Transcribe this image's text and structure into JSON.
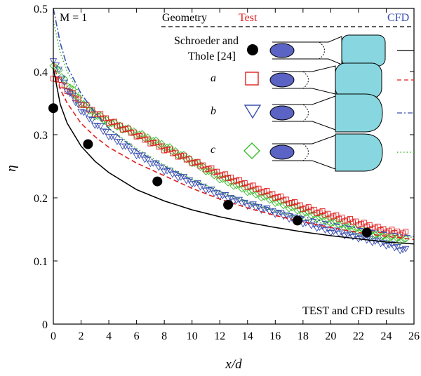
{
  "chart_data": {
    "type": "scatter",
    "xlabel": "x/d",
    "ylabel": "η",
    "xlim": [
      0,
      26
    ],
    "ylim": [
      0,
      0.5
    ],
    "xticks": [
      "0",
      "2",
      "4",
      "6",
      "8",
      "10",
      "12",
      "14",
      "16",
      "18",
      "20",
      "22",
      "24",
      "26"
    ],
    "yticks": [
      "0",
      "0.1",
      "0.2",
      "0.3",
      "0.4",
      "0.5"
    ],
    "annotation_top_left": "M = 1",
    "annotation_bottom_right": "TEST and CFD results",
    "legend": {
      "col_geometry": "Geometry",
      "col_test": "Test",
      "col_cfd": "CFD",
      "rows": [
        {
          "label_line1": "Schroeder and",
          "label_line2": "Thole [24]",
          "marker": "circle",
          "color": "#000000",
          "line_style": "solid"
        },
        {
          "label": "a",
          "marker": "square",
          "color": "#e02020",
          "line_style": "dashed"
        },
        {
          "label": "b",
          "marker": "triangle-down",
          "color": "#3b4fb0",
          "line_style": "dashdot"
        },
        {
          "label": "c",
          "marker": "diamond",
          "color": "#3bbb2c",
          "line_style": "dotted"
        }
      ]
    },
    "series": [
      {
        "name": "Schroeder and Thole [24]",
        "color": "#000000",
        "points": [
          [
            0,
            0.342
          ],
          [
            2.5,
            0.285
          ],
          [
            7.5,
            0.226
          ],
          [
            12.6,
            0.189
          ],
          [
            17.6,
            0.164
          ],
          [
            22.6,
            0.145
          ]
        ],
        "curve": [
          [
            0,
            0.405
          ],
          [
            0.5,
            0.348
          ],
          [
            1,
            0.318
          ],
          [
            2,
            0.282
          ],
          [
            3,
            0.258
          ],
          [
            4,
            0.24
          ],
          [
            6,
            0.213
          ],
          [
            8,
            0.195
          ],
          [
            10,
            0.181
          ],
          [
            12,
            0.17
          ],
          [
            14,
            0.161
          ],
          [
            16,
            0.153
          ],
          [
            18,
            0.146
          ],
          [
            20,
            0.14
          ],
          [
            22,
            0.135
          ],
          [
            24,
            0.13
          ],
          [
            26,
            0.127
          ]
        ]
      },
      {
        "name": "a",
        "color": "#e02020",
        "test": [
          [
            0,
            0.392
          ],
          [
            1,
            0.372
          ],
          [
            2,
            0.35
          ],
          [
            3,
            0.335
          ],
          [
            4,
            0.322
          ],
          [
            6,
            0.3
          ],
          [
            8,
            0.278
          ],
          [
            10,
            0.258
          ],
          [
            12,
            0.238
          ],
          [
            14,
            0.22
          ],
          [
            16,
            0.203
          ],
          [
            18,
            0.185
          ],
          [
            20,
            0.172
          ],
          [
            22,
            0.16
          ],
          [
            24,
            0.148
          ],
          [
            25.5,
            0.143
          ]
        ],
        "cfd": [
          [
            0,
            0.415
          ],
          [
            0.5,
            0.372
          ],
          [
            1,
            0.35
          ],
          [
            2,
            0.318
          ],
          [
            3,
            0.297
          ],
          [
            4,
            0.28
          ],
          [
            6,
            0.255
          ],
          [
            8,
            0.235
          ],
          [
            10,
            0.215
          ],
          [
            12,
            0.198
          ],
          [
            14,
            0.184
          ],
          [
            16,
            0.172
          ],
          [
            18,
            0.162
          ],
          [
            20,
            0.153
          ],
          [
            22,
            0.145
          ],
          [
            24,
            0.139
          ],
          [
            26,
            0.134
          ]
        ]
      },
      {
        "name": "b",
        "color": "#3b4fb0",
        "test": [
          [
            0,
            0.42
          ],
          [
            1,
            0.372
          ],
          [
            2,
            0.34
          ],
          [
            3,
            0.318
          ],
          [
            4,
            0.3
          ],
          [
            6,
            0.27
          ],
          [
            8,
            0.245
          ],
          [
            10,
            0.225
          ],
          [
            12,
            0.205
          ],
          [
            14,
            0.19
          ],
          [
            16,
            0.177
          ],
          [
            18,
            0.162
          ],
          [
            20,
            0.148
          ],
          [
            22,
            0.138
          ],
          [
            24,
            0.127
          ],
          [
            25.5,
            0.116
          ]
        ],
        "cfd": [
          [
            0,
            0.5
          ],
          [
            0.5,
            0.445
          ],
          [
            1,
            0.408
          ],
          [
            2,
            0.365
          ],
          [
            3,
            0.335
          ],
          [
            4,
            0.31
          ],
          [
            6,
            0.275
          ],
          [
            8,
            0.25
          ],
          [
            10,
            0.228
          ],
          [
            12,
            0.21
          ],
          [
            14,
            0.194
          ],
          [
            16,
            0.181
          ],
          [
            18,
            0.17
          ],
          [
            20,
            0.16
          ],
          [
            22,
            0.152
          ],
          [
            24,
            0.145
          ],
          [
            26,
            0.139
          ]
        ]
      },
      {
        "name": "c",
        "color": "#3bbb2c",
        "test": [
          [
            0,
            0.412
          ],
          [
            1,
            0.38
          ],
          [
            2,
            0.352
          ],
          [
            3,
            0.332
          ],
          [
            4,
            0.32
          ],
          [
            6,
            0.302
          ],
          [
            8,
            0.282
          ],
          [
            10,
            0.258
          ],
          [
            12,
            0.232
          ],
          [
            14,
            0.212
          ],
          [
            16,
            0.195
          ],
          [
            18,
            0.178
          ],
          [
            20,
            0.163
          ],
          [
            22,
            0.148
          ],
          [
            24,
            0.137
          ],
          [
            25.5,
            0.132
          ]
        ],
        "cfd": [
          [
            0,
            0.48
          ],
          [
            0.5,
            0.43
          ],
          [
            1,
            0.4
          ],
          [
            2,
            0.36
          ],
          [
            3,
            0.332
          ],
          [
            4,
            0.31
          ],
          [
            6,
            0.278
          ],
          [
            8,
            0.252
          ],
          [
            10,
            0.23
          ],
          [
            12,
            0.21
          ],
          [
            14,
            0.193
          ],
          [
            16,
            0.179
          ],
          [
            18,
            0.167
          ],
          [
            20,
            0.157
          ],
          [
            22,
            0.149
          ],
          [
            24,
            0.142
          ],
          [
            26,
            0.137
          ]
        ]
      }
    ]
  }
}
